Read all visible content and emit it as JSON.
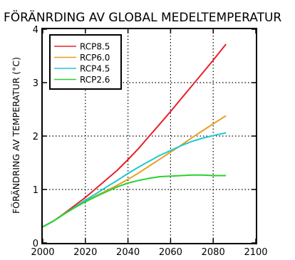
{
  "chart_data": {
    "type": "line",
    "title": "FÖRÄNRDING AV GLOBAL MEDELTEMPERATUR",
    "xlabel": "",
    "ylabel": "FÖRÄNDRING AV TEMPERATUR (°C)",
    "xlim": [
      2000,
      2100
    ],
    "ylim": [
      0,
      4
    ],
    "xticks": [
      "2000",
      "2020",
      "2040",
      "2060",
      "2080",
      "2100"
    ],
    "yticks": [
      "0",
      "1",
      "2",
      "3",
      "4"
    ],
    "grid": "dotted",
    "legend_position": "top-left",
    "series": [
      {
        "name": "RCP8.5",
        "color": "#e8202a",
        "x": [
          2000,
          2005,
          2010,
          2015,
          2020,
          2025,
          2030,
          2035,
          2040,
          2045,
          2050,
          2055,
          2060,
          2065,
          2070,
          2075,
          2080,
          2086
        ],
        "y": [
          0.3,
          0.41,
          0.55,
          0.7,
          0.85,
          1.02,
          1.19,
          1.36,
          1.56,
          1.77,
          2.0,
          2.23,
          2.46,
          2.7,
          2.94,
          3.18,
          3.42,
          3.72
        ]
      },
      {
        "name": "RCP6.0",
        "color": "#e8a020",
        "x": [
          2000,
          2005,
          2010,
          2015,
          2020,
          2025,
          2030,
          2035,
          2040,
          2045,
          2050,
          2055,
          2060,
          2065,
          2070,
          2075,
          2080,
          2086
        ],
        "y": [
          0.3,
          0.41,
          0.54,
          0.66,
          0.78,
          0.88,
          0.98,
          1.08,
          1.19,
          1.31,
          1.44,
          1.57,
          1.7,
          1.83,
          1.97,
          2.1,
          2.23,
          2.38
        ]
      },
      {
        "name": "RCP4.5",
        "color": "#1ec8d2",
        "x": [
          2000,
          2005,
          2010,
          2015,
          2020,
          2025,
          2030,
          2035,
          2040,
          2045,
          2050,
          2055,
          2060,
          2065,
          2070,
          2075,
          2080,
          2086
        ],
        "y": [
          0.3,
          0.41,
          0.54,
          0.67,
          0.8,
          0.92,
          1.05,
          1.17,
          1.3,
          1.42,
          1.53,
          1.64,
          1.73,
          1.82,
          1.9,
          1.96,
          2.01,
          2.06
        ]
      },
      {
        "name": "RCP2.6",
        "color": "#28d232",
        "x": [
          2000,
          2005,
          2010,
          2015,
          2020,
          2025,
          2030,
          2035,
          2040,
          2045,
          2050,
          2055,
          2060,
          2065,
          2070,
          2075,
          2080,
          2086
        ],
        "y": [
          0.3,
          0.41,
          0.54,
          0.66,
          0.77,
          0.87,
          0.96,
          1.05,
          1.12,
          1.17,
          1.21,
          1.24,
          1.25,
          1.26,
          1.27,
          1.27,
          1.26,
          1.26
        ]
      }
    ]
  }
}
